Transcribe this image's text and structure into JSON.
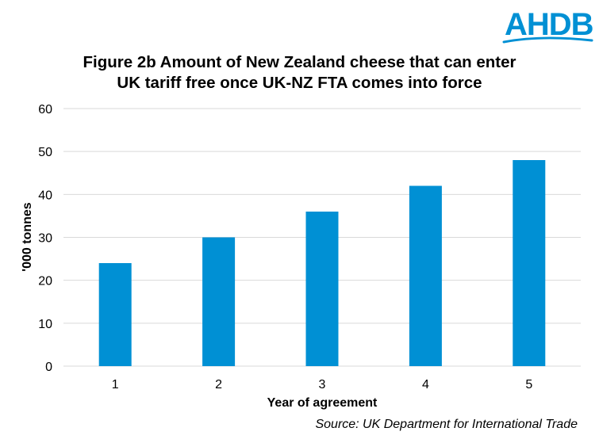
{
  "logo": {
    "text": "AHDB",
    "color": "#0090d4"
  },
  "chart_data": {
    "type": "bar",
    "title_line1": "Figure 2b  Amount of New Zealand cheese that can enter",
    "title_line2": "UK tariff free once UK-NZ FTA comes into force",
    "categories": [
      "1",
      "2",
      "3",
      "4",
      "5"
    ],
    "values": [
      24,
      30,
      36,
      42,
      48
    ],
    "xlabel": "Year of agreement",
    "ylabel": "'000 tonnes",
    "ylim": [
      0,
      60
    ],
    "yticks": [
      0,
      10,
      20,
      30,
      40,
      50,
      60
    ],
    "grid": true,
    "bar_color": "#0090d4",
    "grid_color": "#d9d9d9"
  },
  "source": "Source: UK Department for International Trade"
}
